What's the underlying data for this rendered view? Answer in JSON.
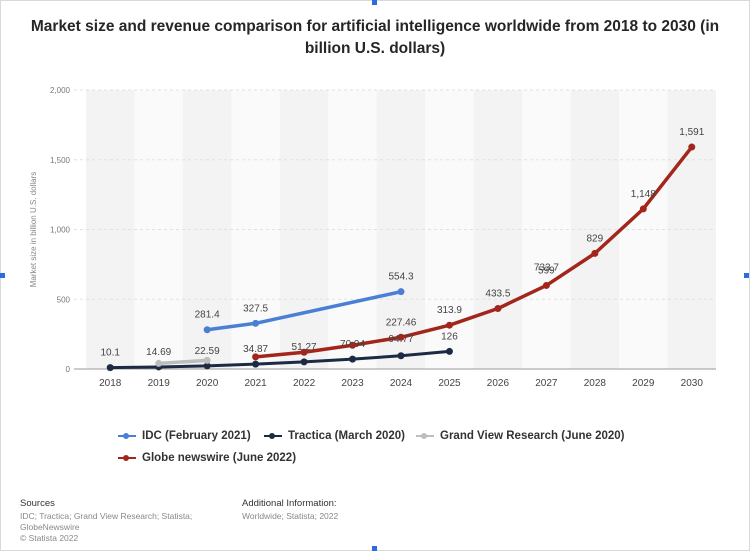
{
  "chart_data": {
    "type": "line",
    "title": "Market size and revenue comparison for artificial intelligence worldwide from 2018 to 2030 (in billion U.S. dollars)",
    "ylabel": "Market size in billion U.S. dollars",
    "xlabel": "",
    "ylim": [
      0,
      2000
    ],
    "yticks": [
      0,
      500,
      1000,
      1500,
      2000
    ],
    "ytick_labels": [
      "0",
      "500",
      "1,000",
      "1,500",
      "2,000"
    ],
    "categories": [
      "2018",
      "2019",
      "2020",
      "2021",
      "2022",
      "2023",
      "2024",
      "2025",
      "2026",
      "2027",
      "2028",
      "2029",
      "2030"
    ],
    "grid": true,
    "legend_position": "bottom",
    "series": [
      {
        "name": "IDC (February 2021)",
        "color": "#4a7fd6",
        "values": [
          null,
          null,
          281.4,
          327.5,
          null,
          null,
          554.3,
          null,
          null,
          null,
          null,
          null,
          null
        ],
        "labels": [
          null,
          null,
          "281.4",
          "327.5",
          null,
          null,
          "554.3",
          null,
          null,
          null,
          null,
          null,
          null
        ]
      },
      {
        "name": "Tractica (March 2020)",
        "color": "#1c2a44",
        "values": [
          10.1,
          14.69,
          22.59,
          34.87,
          51.27,
          70.94,
          94.77,
          126,
          null,
          null,
          null,
          null,
          null
        ],
        "labels": [
          "10.1",
          "14.69",
          "22.59",
          "34.87",
          "51.27",
          "70.94",
          "94.77",
          "126",
          null,
          null,
          null,
          null,
          null
        ]
      },
      {
        "name": "Grand View Research (June 2020)",
        "color": "#bdbdbd",
        "values": [
          null,
          40,
          62,
          null,
          null,
          null,
          null,
          null,
          null,
          null,
          null,
          null,
          null
        ],
        "labels": [
          null,
          null,
          null,
          null,
          null,
          null,
          null,
          null,
          null,
          null,
          null,
          null,
          null
        ]
      },
      {
        "name": "Globe newswire (June 2022)",
        "color": "#a3261c",
        "values": [
          null,
          null,
          null,
          87,
          120,
          170,
          227.46,
          313.9,
          433.5,
          599,
          829,
          1148,
          1591
        ],
        "labels": [
          null,
          null,
          null,
          null,
          null,
          null,
          "227.46",
          "313.9",
          "433.5",
          "599",
          "829",
          "1,148",
          "1,591"
        ]
      }
    ],
    "annotations": [
      {
        "text": "733.7",
        "category": "2027",
        "value": 733.7
      }
    ]
  },
  "footer": {
    "sources_heading": "Sources",
    "sources_text": [
      "IDC; Tractica; Grand View Research; Statista;",
      "GlobeNewswire"
    ],
    "copyright": "© Statista 2022",
    "additional_heading": "Additional Information:",
    "additional_text": "Worldwide; Statista; 2022"
  }
}
